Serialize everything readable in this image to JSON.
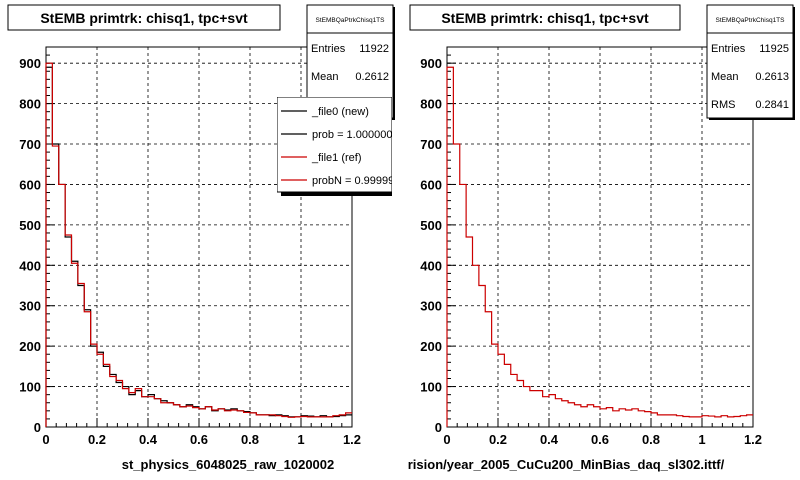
{
  "panels": [
    {
      "title": "StEMB primtrk: chisq1, tpc+svt",
      "stats": {
        "name": "StEMBQaPtrkChisq1TS",
        "rows": [
          {
            "label": "Entries",
            "value": "11922"
          },
          {
            "label": "Mean",
            "value": "0.2612"
          }
        ]
      },
      "legend": [
        {
          "label": "_file0 (new)",
          "color": "#000000"
        },
        {
          "label": "prob = 1.000000",
          "color": "#000000"
        },
        {
          "label": "_file1 (ref)",
          "color": "#cc0000"
        },
        {
          "label": "probN = 0.999990",
          "color": "#cc0000"
        }
      ],
      "xlabel": "st_physics_6048025_raw_1020002"
    },
    {
      "title": "StEMB primtrk: chisq1, tpc+svt",
      "stats": {
        "name": "StEMBQaPtrkChisq1TS",
        "rows": [
          {
            "label": "Entries",
            "value": "11925"
          },
          {
            "label": "Mean",
            "value": "0.2613"
          },
          {
            "label": "RMS",
            "value": "0.2841"
          }
        ]
      },
      "legend": [],
      "xlabel": "rision/year_2005_CuCu200_MinBias_daq_sl302.ittf/"
    }
  ],
  "footer_text": "",
  "chart_data": [
    {
      "type": "histogram",
      "title": "StEMB primtrk: chisq1, tpc+svt",
      "xlabel": "st_physics_6048025_raw_1020002",
      "ylabel": "",
      "xlim": [
        0,
        1.2
      ],
      "ylim": [
        0,
        940
      ],
      "xticks": [
        0,
        0.2,
        0.4,
        0.6,
        0.8,
        1,
        1.2
      ],
      "xtick_labels": [
        "0",
        "0.2",
        "0.4",
        "0.6",
        "0.8",
        "1",
        "1.2"
      ],
      "yticks": [
        0,
        100,
        200,
        300,
        400,
        500,
        600,
        700,
        800,
        900
      ],
      "grid": true,
      "bin_width": 0.025,
      "series": [
        {
          "color": "#000000",
          "values": [
            890,
            700,
            600,
            470,
            410,
            350,
            290,
            200,
            185,
            150,
            130,
            110,
            100,
            80,
            90,
            75,
            80,
            70,
            65,
            60,
            55,
            50,
            55,
            50,
            45,
            50,
            40,
            45,
            42,
            45,
            40,
            38,
            35,
            30,
            30,
            28,
            30,
            28,
            25,
            25,
            28,
            27,
            25,
            28,
            25,
            26,
            28,
            30
          ]
        },
        {
          "color": "#cc0000",
          "values": [
            900,
            695,
            600,
            475,
            405,
            355,
            285,
            205,
            180,
            155,
            125,
            115,
            95,
            85,
            95,
            75,
            75,
            70,
            60,
            60,
            55,
            50,
            52,
            48,
            45,
            50,
            42,
            45,
            40,
            42,
            40,
            36,
            35,
            30,
            30,
            30,
            28,
            26,
            24,
            25,
            26,
            25,
            25,
            25,
            25,
            28,
            30,
            35
          ]
        }
      ]
    },
    {
      "type": "histogram",
      "title": "StEMB primtrk: chisq1, tpc+svt",
      "xlabel": "rision/year_2005_CuCu200_MinBias_daq_sl302.ittf/",
      "ylabel": "",
      "xlim": [
        0,
        1.2
      ],
      "ylim": [
        0,
        940
      ],
      "xticks": [
        0,
        0.2,
        0.4,
        0.6,
        0.8,
        1,
        1.2
      ],
      "xtick_labels": [
        "0",
        "0.2",
        "0.4",
        "0.6",
        "0.8",
        "1",
        "1.2"
      ],
      "yticks": [
        0,
        100,
        200,
        300,
        400,
        500,
        600,
        700,
        800,
        900
      ],
      "grid": true,
      "bin_width": 0.025,
      "series": [
        {
          "color": "#cc0000",
          "values": [
            890,
            700,
            600,
            470,
            400,
            350,
            285,
            205,
            180,
            155,
            130,
            115,
            100,
            90,
            90,
            75,
            80,
            70,
            65,
            60,
            55,
            50,
            55,
            50,
            45,
            48,
            40,
            45,
            42,
            45,
            40,
            38,
            35,
            30,
            30,
            30,
            28,
            26,
            25,
            25,
            28,
            27,
            25,
            28,
            25,
            26,
            28,
            30
          ]
        }
      ]
    }
  ]
}
